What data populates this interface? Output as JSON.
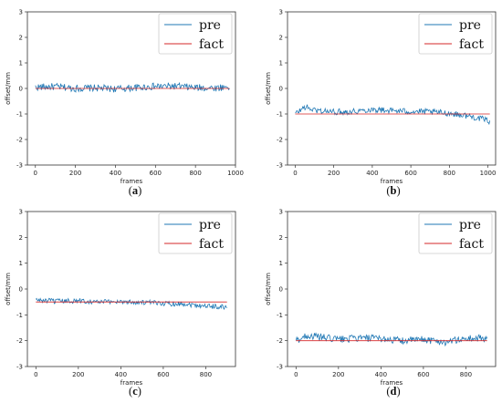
{
  "chart_data": [
    {
      "type": "line",
      "panel": "a",
      "caption_letter": "a",
      "xlabel": "frames",
      "ylabel": "offset/mm",
      "xlim": [
        -40,
        1000
      ],
      "ylim": [
        -3,
        3
      ],
      "xticks": [
        0,
        200,
        400,
        600,
        800,
        1000
      ],
      "yticks": [
        -3,
        -2,
        -1,
        0,
        1,
        2,
        3
      ],
      "legend": {
        "position": "top-right",
        "entries": [
          "pre",
          "fact"
        ]
      },
      "fact_value": 0,
      "series": [
        {
          "name": "pre",
          "color": "#1f77b4",
          "x": [
            0,
            100,
            200,
            300,
            400,
            500,
            600,
            700,
            800,
            900,
            970
          ],
          "y": [
            0.05,
            0.07,
            0.0,
            0.02,
            -0.02,
            0.03,
            0.08,
            0.09,
            0.03,
            0.02,
            0.07
          ],
          "noise": 0.14
        },
        {
          "name": "fact",
          "color": "#d62728",
          "x": [
            0,
            970
          ],
          "y": [
            0,
            0
          ]
        }
      ]
    },
    {
      "type": "line",
      "panel": "b",
      "caption_letter": "b",
      "xlabel": "frames",
      "ylabel": "offset/mm",
      "xlim": [
        -40,
        1040
      ],
      "ylim": [
        -3,
        3
      ],
      "xticks": [
        0,
        200,
        400,
        600,
        800,
        1000
      ],
      "yticks": [
        -3,
        -2,
        -1,
        0,
        1,
        2,
        3
      ],
      "legend": {
        "position": "top-right",
        "entries": [
          "pre",
          "fact"
        ]
      },
      "fact_value": -1,
      "series": [
        {
          "name": "pre",
          "color": "#1f77b4",
          "x": [
            0,
            50,
            100,
            200,
            300,
            400,
            500,
            600,
            700,
            800,
            900,
            1000,
            1010
          ],
          "y": [
            -1.0,
            -0.72,
            -0.85,
            -0.92,
            -0.9,
            -0.82,
            -0.87,
            -0.9,
            -0.92,
            -0.97,
            -1.08,
            -1.25,
            -1.3
          ],
          "noise": 0.12
        },
        {
          "name": "fact",
          "color": "#d62728",
          "x": [
            0,
            1010
          ],
          "y": [
            -1,
            -1
          ]
        }
      ]
    },
    {
      "type": "line",
      "panel": "c",
      "caption_letter": "c",
      "xlabel": "frames",
      "ylabel": "offset/mm",
      "xlim": [
        -40,
        940
      ],
      "ylim": [
        -3,
        3
      ],
      "xticks": [
        0,
        200,
        400,
        600,
        800
      ],
      "yticks": [
        -3,
        -2,
        -1,
        0,
        1,
        2,
        3
      ],
      "legend": {
        "position": "top-right",
        "entries": [
          "pre",
          "fact"
        ]
      },
      "fact_value": -0.5,
      "series": [
        {
          "name": "pre",
          "color": "#1f77b4",
          "x": [
            0,
            100,
            200,
            300,
            400,
            500,
            600,
            700,
            800,
            900
          ],
          "y": [
            -0.42,
            -0.48,
            -0.45,
            -0.5,
            -0.48,
            -0.52,
            -0.55,
            -0.58,
            -0.65,
            -0.7
          ],
          "noise": 0.1
        },
        {
          "name": "fact",
          "color": "#d62728",
          "x": [
            0,
            900
          ],
          "y": [
            -0.5,
            -0.5
          ]
        }
      ]
    },
    {
      "type": "line",
      "panel": "d",
      "caption_letter": "d",
      "xlabel": "frames",
      "ylabel": "offset/mm",
      "xlim": [
        -40,
        940
      ],
      "ylim": [
        -3,
        3
      ],
      "xticks": [
        0,
        200,
        400,
        600,
        800
      ],
      "yticks": [
        -3,
        -2,
        -1,
        0,
        1,
        2,
        3
      ],
      "legend": {
        "position": "top-right",
        "entries": [
          "pre",
          "fact"
        ]
      },
      "fact_value": -2,
      "series": [
        {
          "name": "pre",
          "color": "#1f77b4",
          "x": [
            0,
            50,
            100,
            200,
            300,
            400,
            500,
            600,
            700,
            800,
            900
          ],
          "y": [
            -2.0,
            -1.8,
            -1.85,
            -1.95,
            -1.9,
            -1.92,
            -2.0,
            -1.95,
            -2.05,
            -1.92,
            -1.9
          ],
          "noise": 0.14
        },
        {
          "name": "fact",
          "color": "#d62728",
          "x": [
            0,
            900
          ],
          "y": [
            -2,
            -2
          ]
        }
      ]
    }
  ]
}
